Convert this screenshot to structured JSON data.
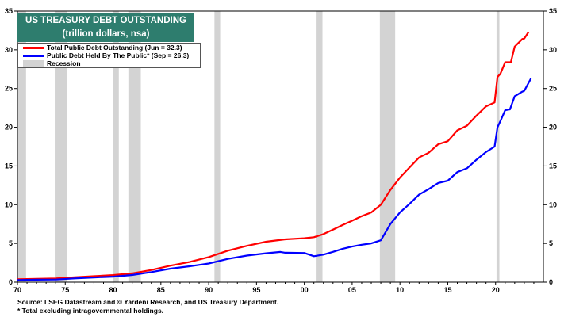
{
  "title": {
    "line1": "US TREASURY DEBT OUTSTANDING",
    "line2": "(trillion dollars, nsa)"
  },
  "legend": [
    {
      "label": "Total Public Debt Outstanding (Jun = 32.3)",
      "color": "#ff0000"
    },
    {
      "label": "Public Debt Held By The Public* (Sep = 26.3)",
      "color": "#0000ff"
    },
    {
      "label": "Recession",
      "color": "#d3d3d3"
    }
  ],
  "notes": {
    "source": "Source: LSEG Datastream and © Yardeni Research, and US Treasury Department.",
    "footnote": "* Total excluding intragovernmental holdings."
  },
  "chart_data": {
    "type": "line",
    "xlim": [
      1970,
      2025
    ],
    "ylim": [
      0,
      35
    ],
    "x_ticks": [
      1970,
      1975,
      1980,
      1985,
      1990,
      1995,
      2000,
      2005,
      2010,
      2015,
      2020
    ],
    "x_tick_labels": [
      "70",
      "75",
      "80",
      "85",
      "90",
      "95",
      "00",
      "05",
      "10",
      "15",
      "20"
    ],
    "y_ticks": [
      0,
      5,
      10,
      15,
      20,
      25,
      30,
      35
    ],
    "grid": false,
    "dual_axis_labels": true,
    "recessions": [
      [
        1970.0,
        1970.9
      ],
      [
        1973.9,
        1975.2
      ],
      [
        1980.0,
        1980.6
      ],
      [
        1981.6,
        1982.9
      ],
      [
        1990.6,
        1991.2
      ],
      [
        2001.2,
        2001.9
      ],
      [
        2007.9,
        2009.5
      ],
      [
        2020.1,
        2020.4
      ]
    ],
    "series": [
      {
        "name": "Total Public Debt Outstanding (Jun = 32.3)",
        "color": "#ff0000",
        "points": [
          [
            1970,
            0.37
          ],
          [
            1972,
            0.43
          ],
          [
            1974,
            0.48
          ],
          [
            1976,
            0.62
          ],
          [
            1978,
            0.77
          ],
          [
            1980,
            0.91
          ],
          [
            1982,
            1.14
          ],
          [
            1984,
            1.57
          ],
          [
            1986,
            2.13
          ],
          [
            1988,
            2.6
          ],
          [
            1990,
            3.23
          ],
          [
            1992,
            4.06
          ],
          [
            1994,
            4.69
          ],
          [
            1996,
            5.22
          ],
          [
            1998,
            5.53
          ],
          [
            2000,
            5.67
          ],
          [
            2001,
            5.8
          ],
          [
            2002,
            6.2
          ],
          [
            2003,
            6.78
          ],
          [
            2004,
            7.38
          ],
          [
            2005,
            7.93
          ],
          [
            2006,
            8.51
          ],
          [
            2007,
            9.0
          ],
          [
            2008,
            10.0
          ],
          [
            2009,
            11.9
          ],
          [
            2010,
            13.5
          ],
          [
            2011,
            14.8
          ],
          [
            2012,
            16.1
          ],
          [
            2013,
            16.7
          ],
          [
            2014,
            17.8
          ],
          [
            2015,
            18.2
          ],
          [
            2016,
            19.6
          ],
          [
            2017,
            20.2
          ],
          [
            2018,
            21.5
          ],
          [
            2019,
            22.7
          ],
          [
            2019.9,
            23.2
          ],
          [
            2020.2,
            26.5
          ],
          [
            2020.5,
            26.9
          ],
          [
            2021,
            28.4
          ],
          [
            2021.6,
            28.4
          ],
          [
            2022,
            30.4
          ],
          [
            2022.8,
            31.4
          ],
          [
            2023,
            31.45
          ],
          [
            2023.45,
            32.3
          ]
        ]
      },
      {
        "name": "Public Debt Held By The Public* (Sep = 26.3)",
        "color": "#0000ff",
        "points": [
          [
            1970,
            0.28
          ],
          [
            1972,
            0.32
          ],
          [
            1974,
            0.34
          ],
          [
            1976,
            0.48
          ],
          [
            1978,
            0.6
          ],
          [
            1980,
            0.71
          ],
          [
            1982,
            0.92
          ],
          [
            1984,
            1.3
          ],
          [
            1986,
            1.74
          ],
          [
            1988,
            2.05
          ],
          [
            1990,
            2.41
          ],
          [
            1992,
            3.0
          ],
          [
            1994,
            3.43
          ],
          [
            1996,
            3.73
          ],
          [
            1997.5,
            3.9
          ],
          [
            1998,
            3.8
          ],
          [
            2000,
            3.77
          ],
          [
            2001,
            3.35
          ],
          [
            2002,
            3.55
          ],
          [
            2003,
            3.91
          ],
          [
            2004,
            4.31
          ],
          [
            2005,
            4.6
          ],
          [
            2006,
            4.83
          ],
          [
            2007,
            5.0
          ],
          [
            2008,
            5.4
          ],
          [
            2009,
            7.5
          ],
          [
            2010,
            9.0
          ],
          [
            2011,
            10.1
          ],
          [
            2012,
            11.3
          ],
          [
            2013,
            12.0
          ],
          [
            2014,
            12.8
          ],
          [
            2015,
            13.1
          ],
          [
            2016,
            14.2
          ],
          [
            2017,
            14.7
          ],
          [
            2018,
            15.8
          ],
          [
            2019,
            16.8
          ],
          [
            2019.9,
            17.5
          ],
          [
            2020.2,
            20.0
          ],
          [
            2020.5,
            20.8
          ],
          [
            2021,
            22.2
          ],
          [
            2021.5,
            22.3
          ],
          [
            2022,
            24.0
          ],
          [
            2022.8,
            24.6
          ],
          [
            2023,
            24.7
          ],
          [
            2023.7,
            26.3
          ]
        ]
      }
    ]
  }
}
